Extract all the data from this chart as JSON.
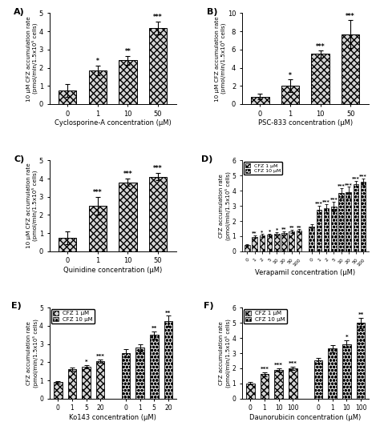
{
  "A": {
    "categories": [
      "0",
      "1",
      "10",
      "50"
    ],
    "values": [
      0.75,
      1.85,
      2.4,
      4.2
    ],
    "errors": [
      0.35,
      0.25,
      0.25,
      0.35
    ],
    "sig": [
      "",
      "*",
      "**",
      "***"
    ],
    "ylabel": "10 μM CFZ accumulation rate\n(pmol/min/1.5x10⁵ cells)",
    "xlabel": "Cyclosporine-A concentration (μM)",
    "ylim": [
      0,
      5
    ],
    "yticks": [
      0,
      1,
      2,
      3,
      4,
      5
    ],
    "label": "A)"
  },
  "B": {
    "categories": [
      "0",
      "1",
      "10",
      "50"
    ],
    "values": [
      0.8,
      2.0,
      5.5,
      7.7
    ],
    "errors": [
      0.3,
      0.7,
      0.4,
      1.5
    ],
    "sig": [
      "",
      "*",
      "***",
      "***"
    ],
    "ylabel": "10 μM CFZ accumulation rate\n(pmol/min/1.5x10⁵ cells)",
    "xlabel": "PSC-833 concentration (μM)",
    "ylim": [
      0,
      10
    ],
    "yticks": [
      0,
      2,
      4,
      6,
      8,
      10
    ],
    "label": "B)"
  },
  "C": {
    "categories": [
      "0",
      "1",
      "10",
      "50"
    ],
    "values": [
      0.75,
      2.5,
      3.8,
      4.1
    ],
    "errors": [
      0.35,
      0.5,
      0.2,
      0.2
    ],
    "sig": [
      "",
      "***",
      "***",
      "***"
    ],
    "ylabel": "10 μM CFZ accumulation rate\n(pmol/min/1.5x10⁵ cells)",
    "xlabel": "Quinidine concentration (μM)",
    "ylim": [
      0,
      5
    ],
    "yticks": [
      0,
      1,
      2,
      3,
      4,
      5
    ],
    "label": "C)"
  },
  "D": {
    "categories_1": [
      "0",
      "1",
      "2",
      "5",
      "10",
      "20",
      "50",
      "100"
    ],
    "values_1": [
      0.4,
      0.95,
      1.05,
      1.1,
      1.15,
      1.2,
      1.3,
      1.35
    ],
    "errors_1": [
      0.05,
      0.08,
      0.08,
      0.08,
      0.1,
      0.1,
      0.1,
      0.1
    ],
    "sig_1": [
      "",
      "**",
      "*",
      "*",
      "*",
      "**",
      "**",
      "**"
    ],
    "categories_2": [
      "0",
      "1",
      "2",
      "5",
      "10",
      "20",
      "50",
      "100"
    ],
    "values_2": [
      1.65,
      2.75,
      2.85,
      2.95,
      3.85,
      3.9,
      4.45,
      4.6
    ],
    "errors_2": [
      0.12,
      0.25,
      0.25,
      0.3,
      0.3,
      0.35,
      0.2,
      0.2
    ],
    "sig_2": [
      "",
      "***",
      "***",
      "***",
      "***",
      "***",
      "***",
      "***"
    ],
    "ylabel": "CFZ accumulation rate\n(pmol/min/1.5x10⁵ cells)",
    "xlabel": "Verapamil concentration (μM)",
    "ylim": [
      0,
      6
    ],
    "yticks": [
      0,
      1,
      2,
      3,
      4,
      5,
      6
    ],
    "label": "D)",
    "legend": [
      "CFZ 1 μM",
      "CFZ 10 μM"
    ]
  },
  "E": {
    "categories_1": [
      "0",
      "1",
      "5",
      "20"
    ],
    "values_1": [
      0.9,
      1.62,
      1.75,
      2.05
    ],
    "errors_1": [
      0.08,
      0.1,
      0.1,
      0.1
    ],
    "sig_1": [
      "",
      "",
      "*",
      "***"
    ],
    "categories_2": [
      "0",
      "1",
      "5",
      "20"
    ],
    "values_2": [
      2.5,
      2.8,
      3.5,
      4.25
    ],
    "errors_2": [
      0.2,
      0.2,
      0.2,
      0.3
    ],
    "sig_2": [
      "",
      "",
      "**",
      "**"
    ],
    "ylabel": "CFZ accumulation rate\n(pmol/min/1.5x10⁵ cells)",
    "xlabel": "Ko143 concentration (μM)",
    "ylim": [
      0,
      5
    ],
    "yticks": [
      0,
      1,
      2,
      3,
      4,
      5
    ],
    "label": "E)",
    "legend": [
      "CFZ 1 μM",
      "CFZ 10 μM"
    ]
  },
  "F": {
    "categories_1": [
      "0",
      "1",
      "10",
      "100"
    ],
    "values_1": [
      1.0,
      1.6,
      1.9,
      2.0
    ],
    "errors_1": [
      0.08,
      0.12,
      0.1,
      0.1
    ],
    "sig_1": [
      "",
      "***",
      "***",
      "***"
    ],
    "categories_2": [
      "0",
      "1",
      "10",
      "100"
    ],
    "values_2": [
      2.5,
      3.3,
      3.6,
      5.0
    ],
    "errors_2": [
      0.18,
      0.25,
      0.25,
      0.35
    ],
    "sig_2": [
      "",
      "",
      "*",
      "**"
    ],
    "ylabel": "CFZ accumulation rate\n(pmol/min/1.5x10⁵ cells)",
    "xlabel": "Daunorubicin concentration (μM)",
    "ylim": [
      0,
      6
    ],
    "yticks": [
      0,
      1,
      2,
      3,
      4,
      5,
      6
    ],
    "label": "F)",
    "legend": [
      "CFZ 1 μM",
      "CFZ 10 μM"
    ]
  },
  "hatch_single": "xxxx",
  "hatch_cfz1": "xxxx",
  "hatch_cfz10": "oooo",
  "bar_color": "#d4d4d4",
  "edge_color": "#000000"
}
